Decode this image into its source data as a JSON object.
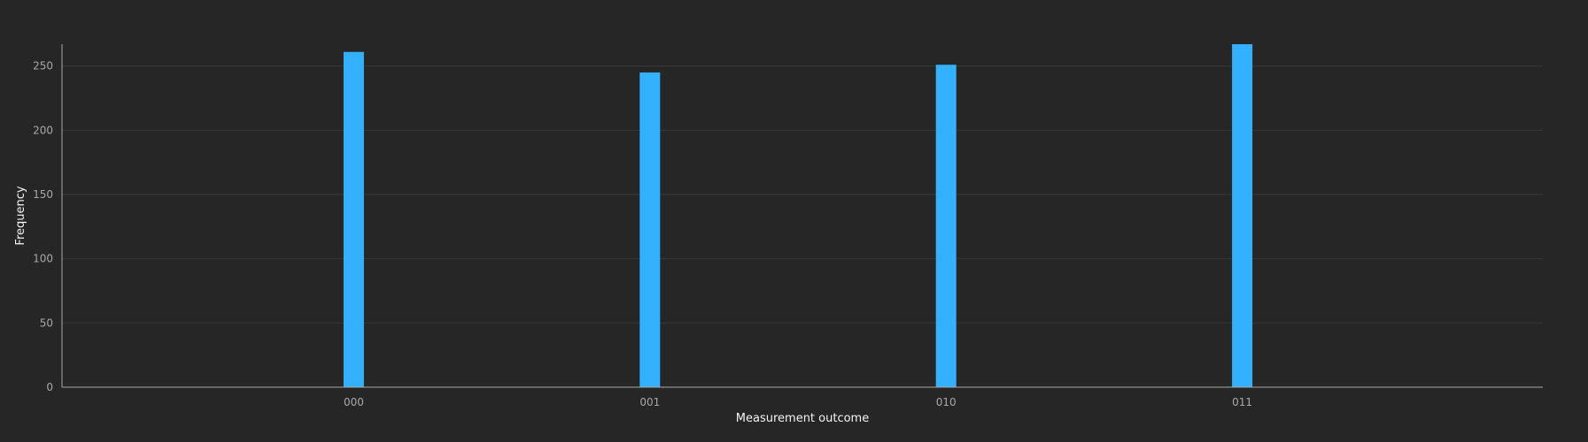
{
  "chart_data": {
    "type": "bar",
    "categories": [
      "000",
      "001",
      "010",
      "011"
    ],
    "series": [
      {
        "values": [
          261,
          245,
          251,
          267
        ]
      }
    ],
    "xlabel": "Measurement outcome",
    "ylabel": "Frequency",
    "ylim": [
      0,
      267
    ],
    "yticks": [
      0,
      50,
      100,
      150,
      200,
      250
    ],
    "grid": true,
    "colors": {
      "bar": "#33b1ff",
      "background": "#262626",
      "grid": "#393939",
      "axis": "#a8a8a8"
    }
  }
}
